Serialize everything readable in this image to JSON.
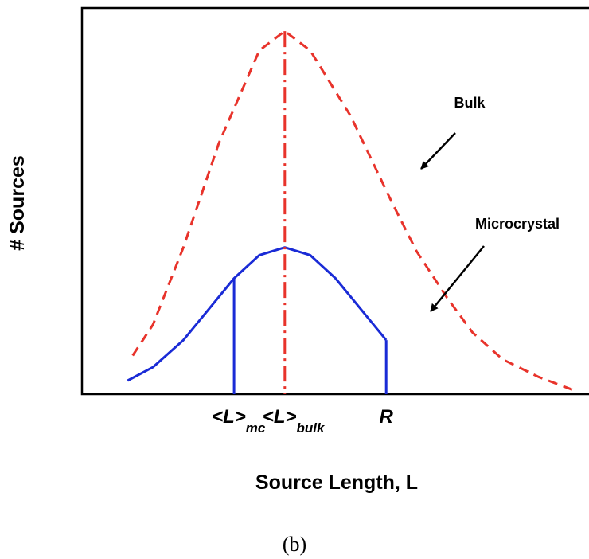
{
  "chart_data": {
    "type": "line",
    "xlabel": "Source Length, L",
    "ylabel": "# Sources",
    "series": [
      {
        "name": "Bulk",
        "color": "#e8332b",
        "style": "dashed",
        "x": [
          1.0,
          1.4,
          2.0,
          2.7,
          3.5,
          4.0,
          4.5,
          5.3,
          6.1,
          6.6,
          7.2,
          7.7,
          8.3,
          9.0,
          9.7
        ],
        "y": [
          1.0,
          1.8,
          3.8,
          6.5,
          8.9,
          9.4,
          8.9,
          7.2,
          5.0,
          3.7,
          2.5,
          1.6,
          0.9,
          0.45,
          0.1
        ]
      },
      {
        "name": "Microcrystal",
        "color": "#1a2bd6",
        "style": "solid",
        "x": [
          0.9,
          1.4,
          2.0,
          2.5,
          3.0,
          3.5,
          4.0,
          4.5,
          5.0,
          5.5,
          6.0
        ],
        "y": [
          0.35,
          0.7,
          1.4,
          2.2,
          3.0,
          3.6,
          3.8,
          3.6,
          3.0,
          2.2,
          1.4
        ]
      }
    ],
    "markers": [
      {
        "x": 3.0,
        "color": "#1a2bd6",
        "style": "solid",
        "label": "<L>",
        "sub": "mc"
      },
      {
        "x": 4.0,
        "color": "#e8332b",
        "style": "dashdot",
        "label": "<L>",
        "sub": "bulk"
      },
      {
        "x": 6.0,
        "color": "#1a2bd6",
        "style": "solid",
        "label": "R",
        "sub": ""
      }
    ],
    "annotations": [
      {
        "text": "Bulk",
        "points_to": "Bulk"
      },
      {
        "text": "Microcrystal",
        "points_to": "Microcrystal"
      }
    ],
    "xlim": [
      0,
      10
    ],
    "ylim": [
      0,
      10
    ]
  },
  "caption": "(b)"
}
